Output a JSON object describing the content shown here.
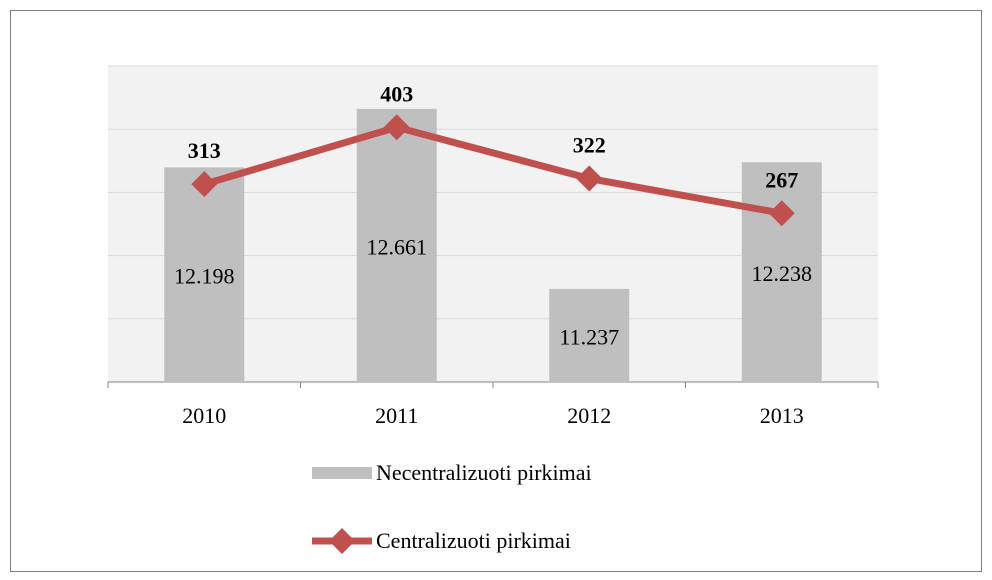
{
  "chart_data": {
    "type": "bar-line",
    "categories": [
      "2010",
      "2011",
      "2012",
      "2013"
    ],
    "series": [
      {
        "name": "Necentralizuoti pirkimai",
        "type": "bar",
        "color": "#bfbfbf",
        "values": [
          12198,
          12661,
          11237,
          12238
        ],
        "value_labels": [
          "12.198",
          "12.661",
          "11.237",
          "12.238"
        ]
      },
      {
        "name": "Centralizuoti pirkimai",
        "type": "line",
        "axis": "y2",
        "color": "#c0504d",
        "values": [
          313,
          403,
          322,
          267
        ]
      }
    ],
    "ylim": [
      10500,
      13000
    ],
    "yticks": [
      10500,
      11000,
      11500,
      12000,
      12500,
      13000
    ],
    "y2lim": [
      0,
      500
    ],
    "y2ticks": [
      0,
      100,
      200,
      300,
      400,
      500
    ],
    "grid": true,
    "legend": "bottom"
  }
}
